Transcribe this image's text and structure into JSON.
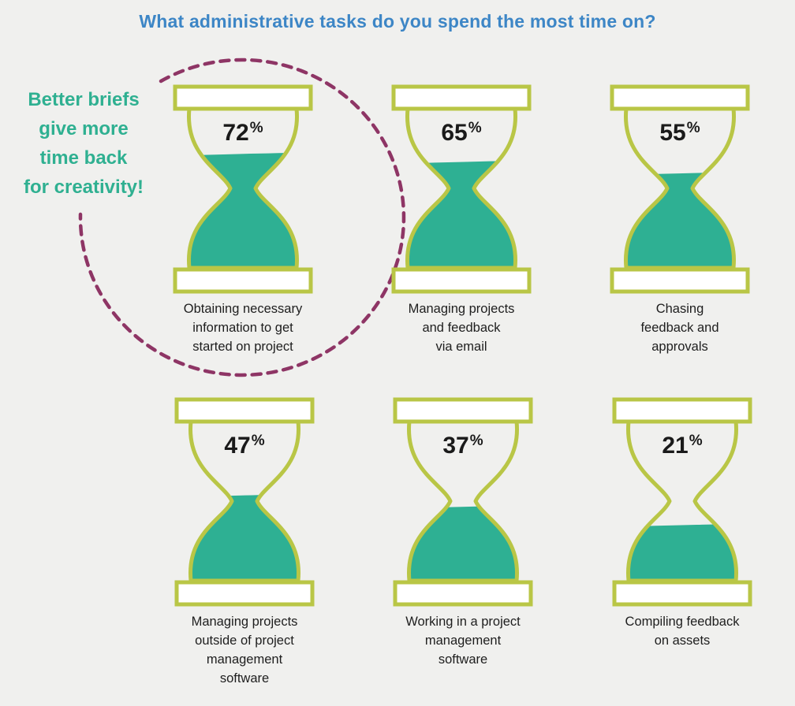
{
  "title": "What administrative tasks do you spend the most time on?",
  "callout": {
    "lines": [
      "Better briefs",
      "give more",
      "time back",
      "for creativity!"
    ]
  },
  "colors": {
    "title": "#3d86c6",
    "callout": "#2fb091",
    "frame": "#b9c646",
    "sand": "#2eb093",
    "circle": "#8e3565",
    "background": "#f0f0ee"
  },
  "chart_data": {
    "type": "bar",
    "title": "What administrative tasks do you spend the most time on?",
    "categories": [
      "Obtaining necessary information to get started on project",
      "Managing projects and feedback via email",
      "Chasing feedback and approvals",
      "Managing projects outside of project management software",
      "Working in a project management software",
      "Compiling feedback on assets"
    ],
    "values": [
      72,
      65,
      55,
      47,
      37,
      21
    ],
    "unit": "%",
    "ylim": [
      0,
      100
    ],
    "items": [
      {
        "value": 72,
        "pct_label": "72",
        "label_lines": [
          "Obtaining necessary",
          "information to get",
          "started on project"
        ],
        "highlighted": true
      },
      {
        "value": 65,
        "pct_label": "65",
        "label_lines": [
          "Managing projects",
          "and feedback",
          "via email"
        ]
      },
      {
        "value": 55,
        "pct_label": "55",
        "label_lines": [
          "Chasing",
          "feedback and",
          "approvals"
        ]
      },
      {
        "value": 47,
        "pct_label": "47",
        "label_lines": [
          "Managing projects",
          "outside of project",
          "management",
          "software"
        ]
      },
      {
        "value": 37,
        "pct_label": "37",
        "label_lines": [
          "Working in a project",
          "management",
          "software"
        ]
      },
      {
        "value": 21,
        "pct_label": "21",
        "label_lines": [
          "Compiling feedback",
          "on assets"
        ]
      }
    ],
    "percent_sign": "%"
  }
}
